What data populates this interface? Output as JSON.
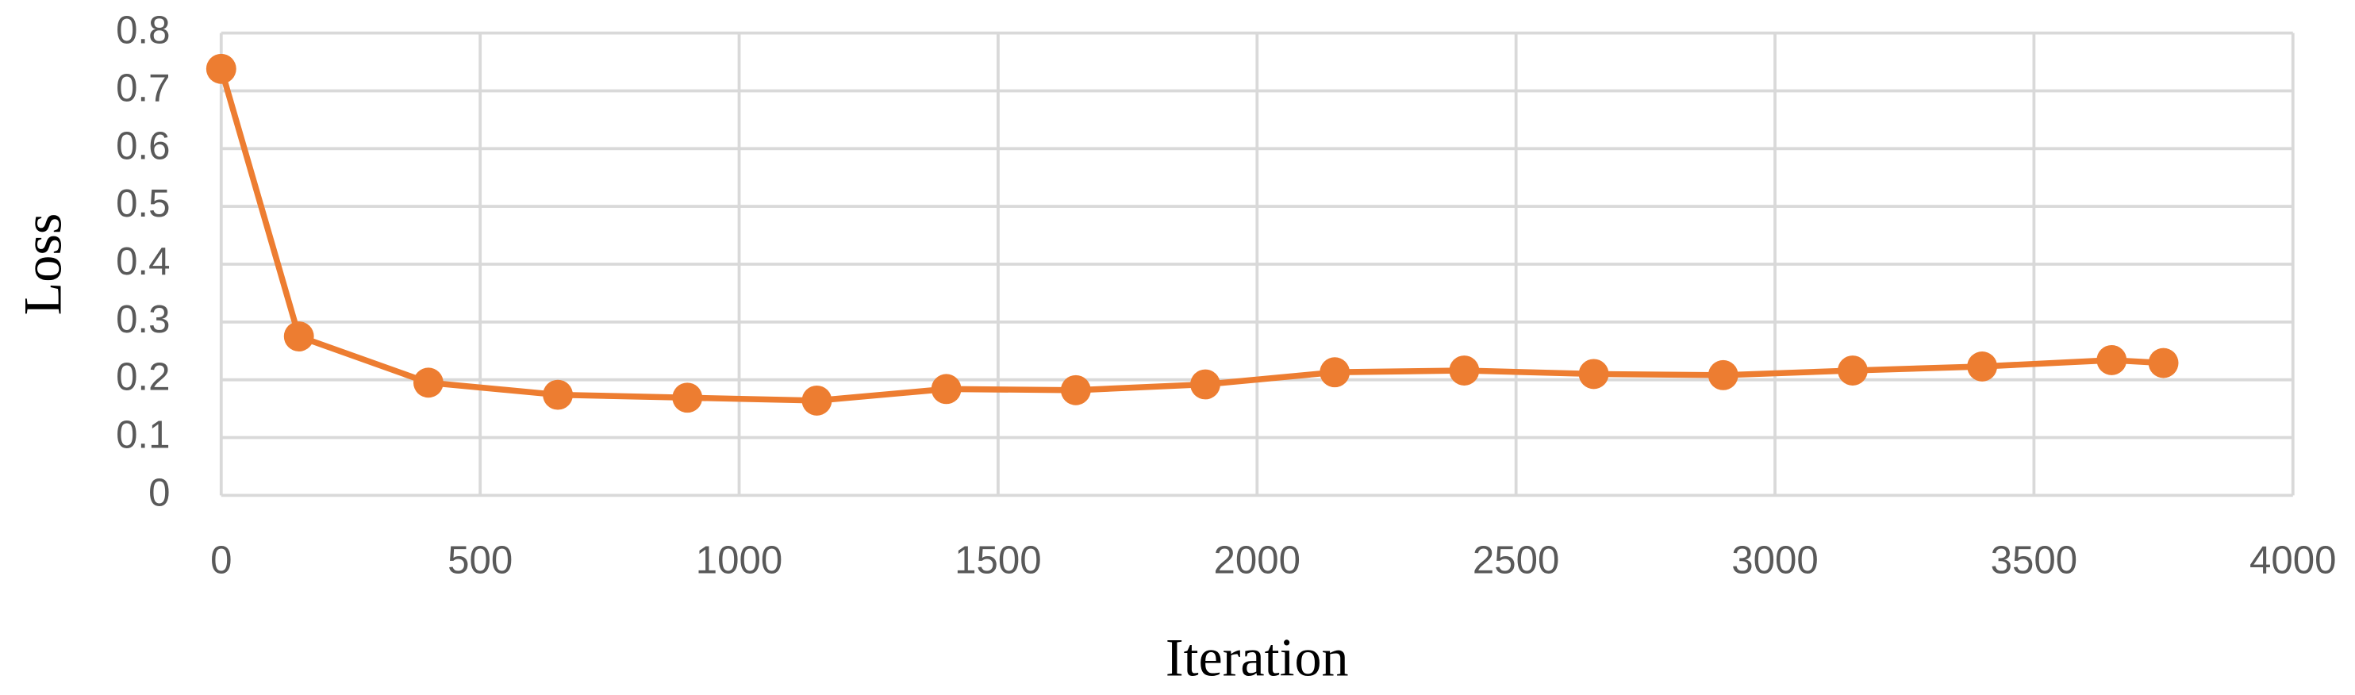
{
  "chart_data": {
    "type": "line",
    "x_label": "Iteration",
    "y_label": "Loss",
    "x": [
      0,
      150,
      400,
      650,
      900,
      1150,
      1400,
      1650,
      1900,
      2150,
      2400,
      2650,
      2900,
      3150,
      3400,
      3650,
      3750
    ],
    "series": [
      {
        "color": "#ED7D31",
        "values": [
          0.738,
          0.275,
          0.195,
          0.174,
          0.169,
          0.164,
          0.184,
          0.182,
          0.192,
          0.213,
          0.216,
          0.21,
          0.208,
          0.216,
          0.223,
          0.234,
          0.229
        ]
      }
    ],
    "xlim": [
      0,
      4000
    ],
    "xticks": [
      0,
      500,
      1000,
      1500,
      2000,
      2500,
      3000,
      3500,
      4000
    ],
    "ylim": [
      0,
      0.8
    ],
    "yticks": [
      0,
      0.1,
      0.2,
      0.3,
      0.4,
      0.5,
      0.6,
      0.7,
      0.8
    ],
    "grid": true
  }
}
